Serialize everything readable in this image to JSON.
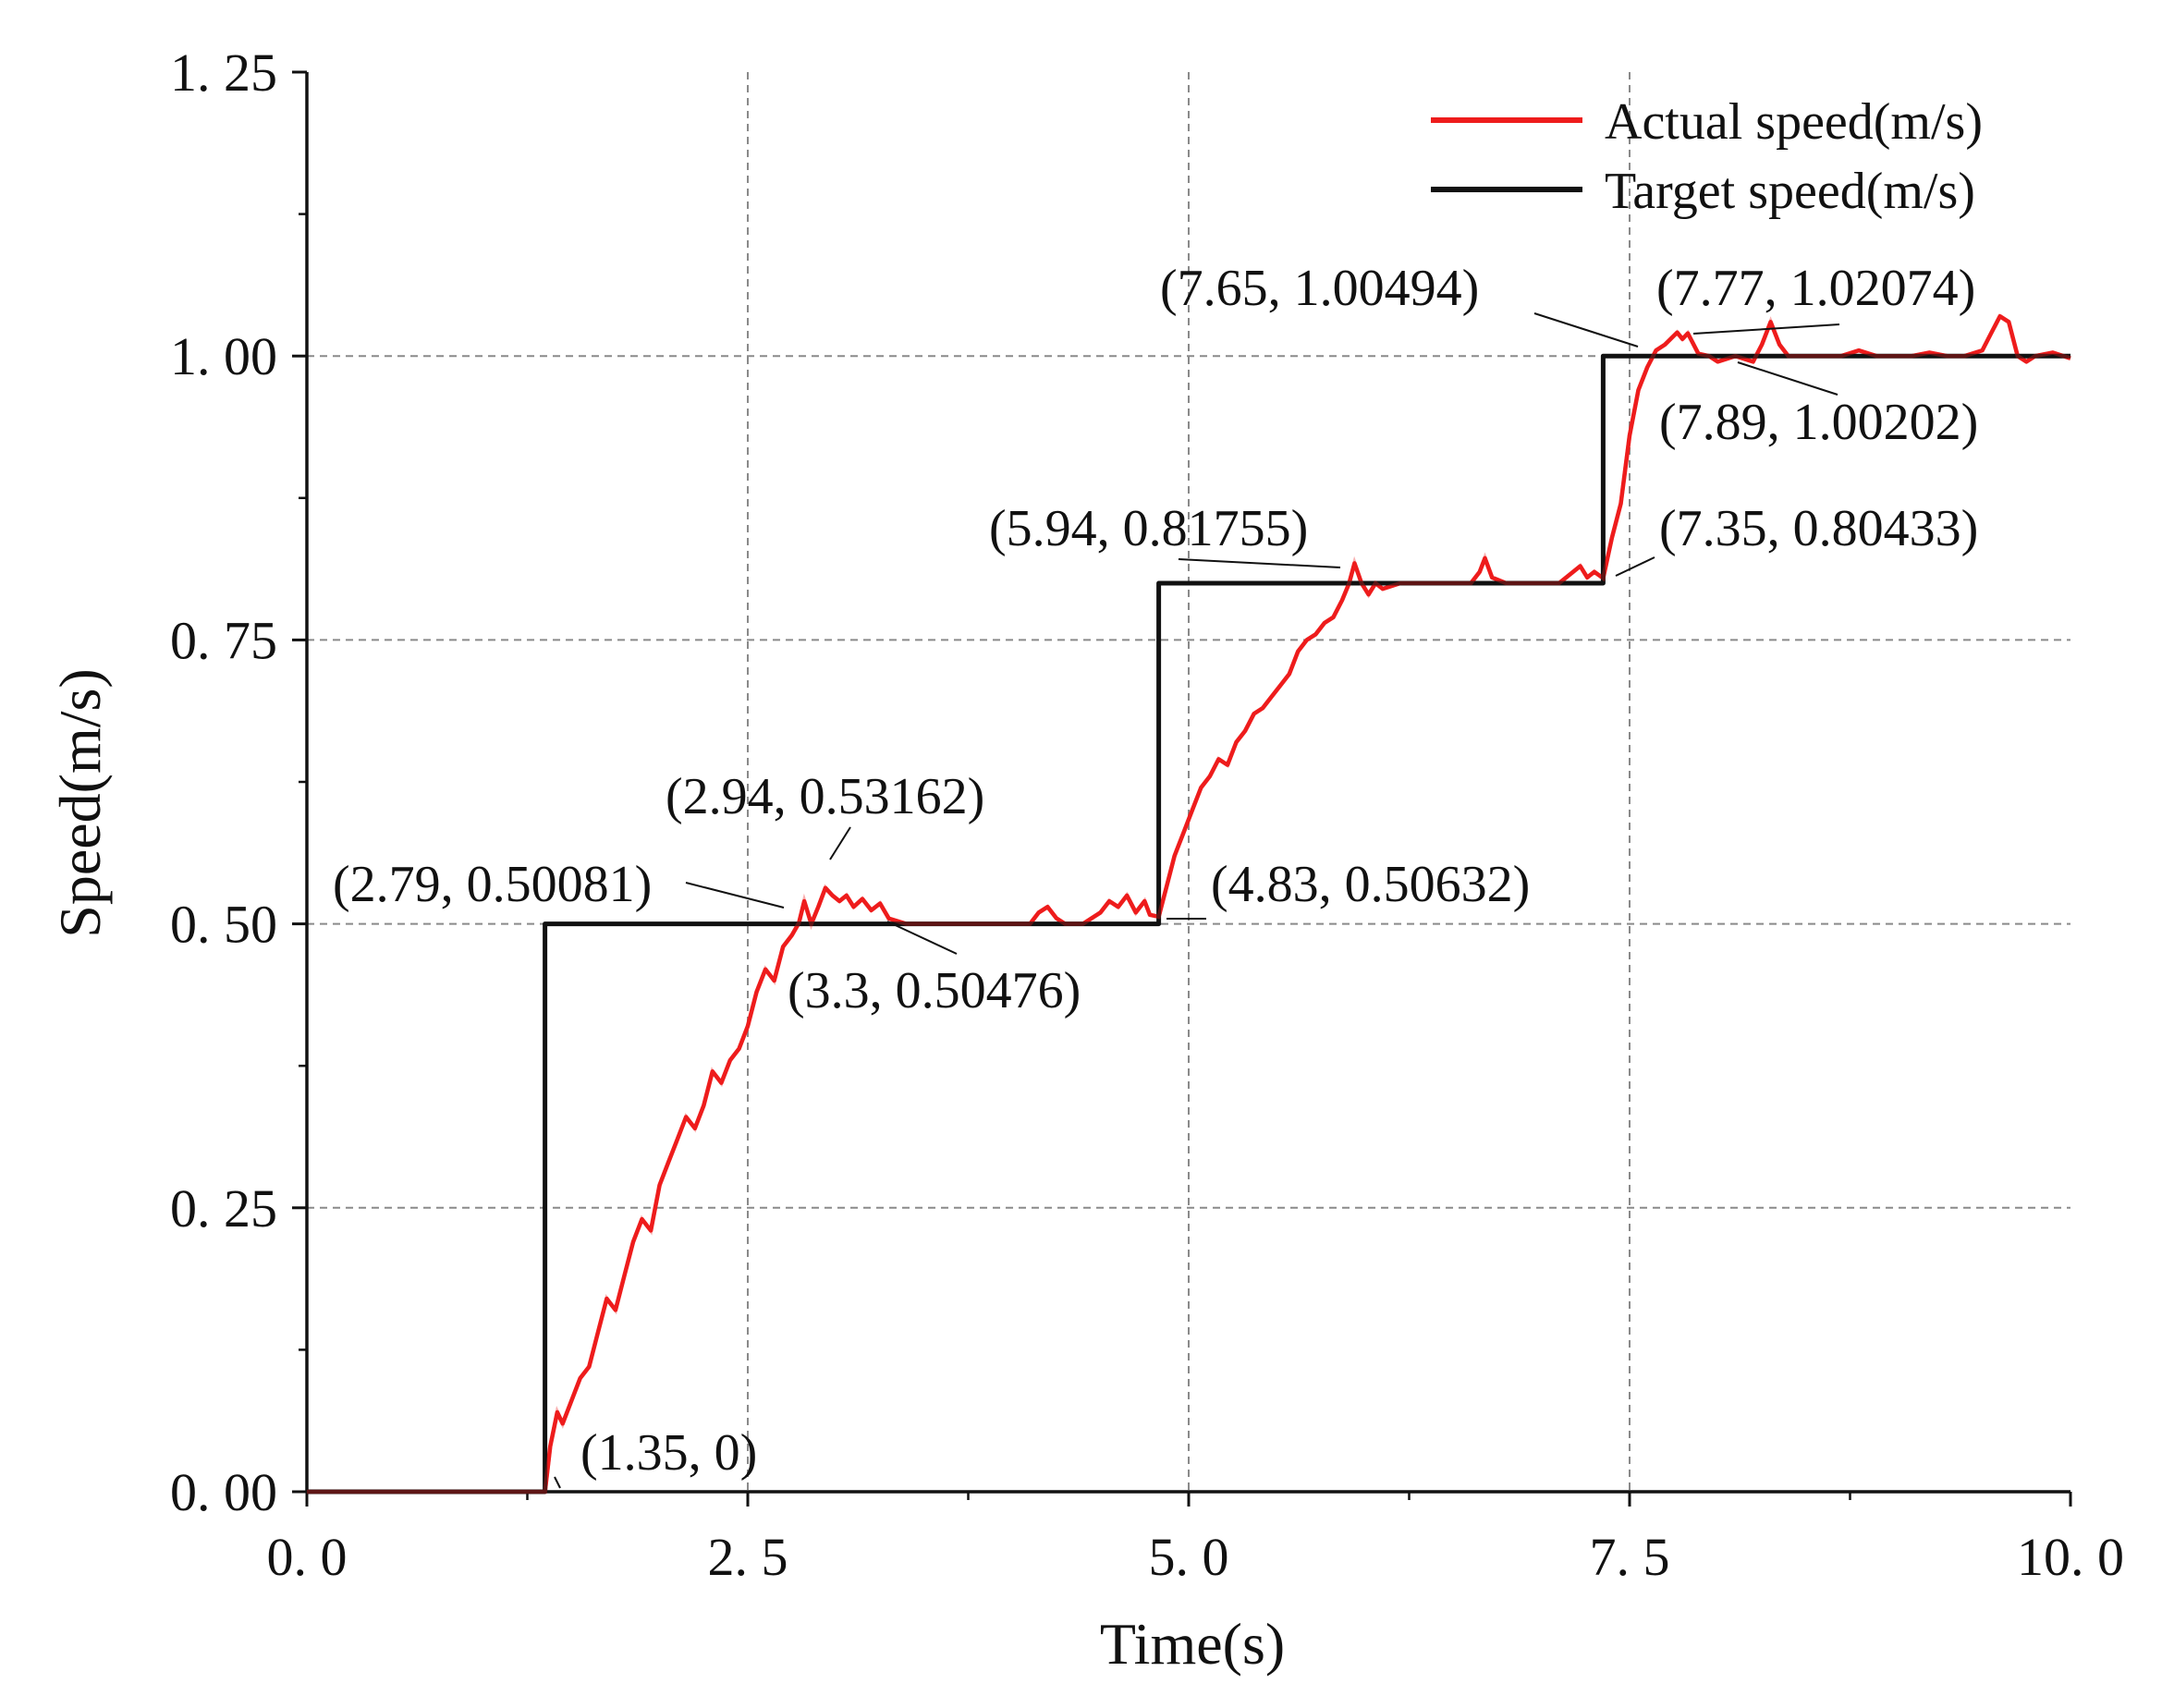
{
  "chart_data": {
    "type": "line",
    "title": "",
    "xlabel": "Time(s)",
    "ylabel": "Speed(m/s)",
    "xlim": [
      0,
      10
    ],
    "ylim": [
      0,
      1.25
    ],
    "xticks": [
      0,
      2.5,
      5,
      7.5,
      10
    ],
    "xtick_labels": [
      "0. 0",
      "2. 5",
      "5. 0",
      "7. 5",
      "10. 0"
    ],
    "yticks": [
      0,
      0.25,
      0.5,
      0.75,
      1.0,
      1.25
    ],
    "ytick_labels": [
      "0. 00",
      "0. 25",
      "0. 50",
      "0. 75",
      "1. 00",
      "1. 25"
    ],
    "grid": true,
    "legend_position": "top-right",
    "series": [
      {
        "name": "Actual speed(m/s)",
        "color": "#ee1c1c",
        "x": [
          0,
          1.35,
          1.38,
          1.42,
          1.45,
          1.5,
          1.55,
          1.6,
          1.65,
          1.7,
          1.75,
          1.8,
          1.85,
          1.9,
          1.95,
          2.0,
          2.05,
          2.1,
          2.15,
          2.2,
          2.25,
          2.3,
          2.35,
          2.4,
          2.45,
          2.5,
          2.55,
          2.6,
          2.65,
          2.7,
          2.75,
          2.79,
          2.82,
          2.86,
          2.9,
          2.94,
          2.98,
          3.02,
          3.06,
          3.1,
          3.15,
          3.2,
          3.25,
          3.3,
          3.4,
          3.6,
          3.8,
          4.0,
          4.1,
          4.15,
          4.2,
          4.25,
          4.3,
          4.4,
          4.5,
          4.55,
          4.6,
          4.65,
          4.7,
          4.75,
          4.78,
          4.83,
          4.87,
          4.92,
          4.97,
          5.02,
          5.07,
          5.12,
          5.17,
          5.22,
          5.27,
          5.32,
          5.37,
          5.42,
          5.47,
          5.52,
          5.57,
          5.62,
          5.67,
          5.72,
          5.77,
          5.82,
          5.87,
          5.91,
          5.94,
          5.98,
          6.02,
          6.06,
          6.1,
          6.2,
          6.3,
          6.4,
          6.5,
          6.6,
          6.65,
          6.68,
          6.72,
          6.8,
          6.9,
          7.0,
          7.1,
          7.18,
          7.22,
          7.26,
          7.3,
          7.35,
          7.4,
          7.45,
          7.5,
          7.55,
          7.6,
          7.65,
          7.7,
          7.77,
          7.8,
          7.83,
          7.89,
          7.95,
          8.0,
          8.1,
          8.2,
          8.25,
          8.3,
          8.35,
          8.4,
          8.5,
          8.6,
          8.7,
          8.8,
          8.9,
          9.0,
          9.1,
          9.2,
          9.3,
          9.4,
          9.5,
          9.55,
          9.6,
          9.65,
          9.7,
          9.75,
          9.8,
          9.9,
          10.0
        ],
        "y": [
          0,
          0,
          0.04,
          0.07,
          0.06,
          0.08,
          0.1,
          0.11,
          0.14,
          0.17,
          0.16,
          0.19,
          0.22,
          0.24,
          0.23,
          0.27,
          0.29,
          0.31,
          0.33,
          0.32,
          0.34,
          0.37,
          0.36,
          0.38,
          0.39,
          0.41,
          0.44,
          0.46,
          0.45,
          0.48,
          0.49,
          0.50081,
          0.52,
          0.5,
          0.515,
          0.53162,
          0.525,
          0.52,
          0.525,
          0.515,
          0.522,
          0.512,
          0.518,
          0.50476,
          0.5,
          0.5,
          0.5,
          0.5,
          0.5,
          0.51,
          0.515,
          0.505,
          0.5,
          0.5,
          0.51,
          0.52,
          0.515,
          0.525,
          0.51,
          0.52,
          0.508,
          0.50632,
          0.53,
          0.56,
          0.58,
          0.6,
          0.62,
          0.63,
          0.645,
          0.64,
          0.66,
          0.67,
          0.685,
          0.69,
          0.7,
          0.71,
          0.72,
          0.74,
          0.75,
          0.755,
          0.765,
          0.77,
          0.785,
          0.8,
          0.81755,
          0.8,
          0.79,
          0.8,
          0.795,
          0.8,
          0.8,
          0.8,
          0.8,
          0.8,
          0.81,
          0.822,
          0.805,
          0.8,
          0.8,
          0.8,
          0.8,
          0.81,
          0.815,
          0.805,
          0.81,
          0.80433,
          0.84,
          0.87,
          0.93,
          0.97,
          0.99,
          1.00494,
          1.01,
          1.02074,
          1.015,
          1.02,
          1.00202,
          1.0,
          0.995,
          1.0,
          0.995,
          1.01,
          1.03,
          1.01,
          1.0,
          1.0,
          1.0,
          1.0,
          1.005,
          1.0,
          1.0,
          1.0,
          1.003,
          1.0,
          1.0,
          1.005,
          1.02,
          1.035,
          1.03,
          1.0,
          0.995,
          1.0,
          1.003,
          0.998
        ]
      },
      {
        "name": "Target speed(m/s)",
        "color": "#111111",
        "x": [
          0,
          1.35,
          1.35,
          4.83,
          4.83,
          7.35,
          7.35,
          10.0
        ],
        "y": [
          0,
          0,
          0.5,
          0.5,
          0.8,
          0.8,
          1.0,
          1.0
        ]
      }
    ],
    "annotations": [
      {
        "text": "(1.35, 0)",
        "x": 1.35,
        "y": 0
      },
      {
        "text": "(2.79, 0.50081)",
        "x": 2.79,
        "y": 0.50081
      },
      {
        "text": "(2.94, 0.53162)",
        "x": 2.94,
        "y": 0.53162
      },
      {
        "text": "(3.3, 0.50476)",
        "x": 3.3,
        "y": 0.50476
      },
      {
        "text": "(4.83, 0.50632)",
        "x": 4.83,
        "y": 0.50632
      },
      {
        "text": "(5.94, 0.81755)",
        "x": 5.94,
        "y": 0.81755
      },
      {
        "text": "(7.35, 0.80433)",
        "x": 7.35,
        "y": 0.80433
      },
      {
        "text": "(7.65, 1.00494)",
        "x": 7.65,
        "y": 1.00494
      },
      {
        "text": "(7.77, 1.02074)",
        "x": 7.77,
        "y": 1.02074
      },
      {
        "text": "(7.89, 1.00202)",
        "x": 7.89,
        "y": 1.00202
      }
    ]
  }
}
